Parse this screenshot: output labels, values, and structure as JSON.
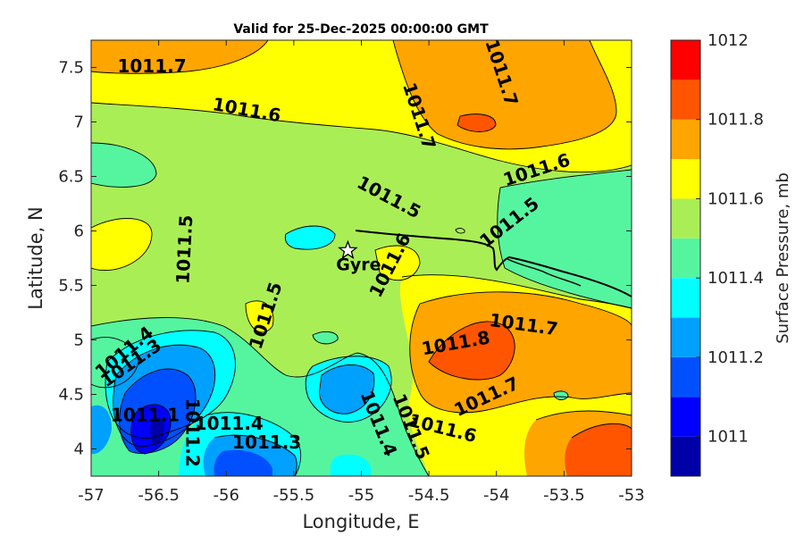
{
  "chart_data": {
    "type": "heatmap",
    "subtype": "filled-contour map",
    "title": "Valid for 25-Dec-2025 00:00:00 GMT",
    "xlabel": "Longitude, E",
    "ylabel": "Latitude, N",
    "xlim": [
      -57,
      -53
    ],
    "ylim": [
      3.75,
      7.75
    ],
    "x_ticks": [
      -57,
      -56.5,
      -56,
      -55.5,
      -55,
      -54.5,
      -54,
      -53.5,
      -53
    ],
    "x_tick_labels": [
      "-57",
      "-56.5",
      "-56",
      "-55.5",
      "-55",
      "-54.5",
      "-54",
      "-53.5",
      "-53"
    ],
    "y_ticks": [
      4,
      4.5,
      5,
      5.5,
      6,
      6.5,
      7,
      7.5
    ],
    "y_tick_labels": [
      "4",
      "4.5",
      "5",
      "5.5",
      "6",
      "6.5",
      "7",
      "7.5"
    ],
    "colorbar": {
      "label": "Surface Pressure, mb",
      "range": [
        1010.9,
        1012
      ],
      "levels": [
        1010.9,
        1011.0,
        1011.1,
        1011.2,
        1011.3,
        1011.4,
        1011.5,
        1011.6,
        1011.7,
        1011.8,
        1011.9,
        1012.0
      ],
      "colors": [
        "#0000a8",
        "#0000ff",
        "#0050ff",
        "#00a0ff",
        "#00ffff",
        "#55f5a0",
        "#aaee55",
        "#ffff00",
        "#ffa500",
        "#ff5500",
        "#ff0000",
        "#a80000"
      ],
      "tick_values": [
        1011,
        1011.2,
        1011.4,
        1011.6,
        1011.8,
        1012
      ],
      "tick_labels": [
        "1011",
        "1011.2",
        "1011.4",
        "1011.6",
        "1011.8",
        "1012"
      ]
    },
    "contour_labels": [
      {
        "text": "1011.7",
        "lon": -56.55,
        "lat": 7.5,
        "angle": 0
      },
      {
        "text": "1011.6",
        "lon": -55.85,
        "lat": 7.1,
        "angle": 10
      },
      {
        "text": "1011.7",
        "lon": -54.58,
        "lat": 7.05,
        "angle": 72
      },
      {
        "text": "1011.7",
        "lon": -53.97,
        "lat": 7.45,
        "angle": 72
      },
      {
        "text": "1011.6",
        "lon": -53.7,
        "lat": 6.55,
        "angle": -18
      },
      {
        "text": "1011.5",
        "lon": -54.8,
        "lat": 6.3,
        "angle": 28
      },
      {
        "text": "1011.5",
        "lon": -53.9,
        "lat": 6.07,
        "angle": -38
      },
      {
        "text": "1011.5",
        "lon": -56.3,
        "lat": 5.83,
        "angle": -87
      },
      {
        "text": "1011.6",
        "lon": -54.78,
        "lat": 5.68,
        "angle": -63
      },
      {
        "text": "1011.5",
        "lon": -55.7,
        "lat": 5.22,
        "angle": -72
      },
      {
        "text": "1011.7",
        "lon": -53.8,
        "lat": 5.13,
        "angle": 8
      },
      {
        "text": "1011.8",
        "lon": -54.3,
        "lat": 4.96,
        "angle": -10
      },
      {
        "text": "1011.7",
        "lon": -54.07,
        "lat": 4.47,
        "angle": -25
      },
      {
        "text": "1011.4",
        "lon": -56.75,
        "lat": 4.88,
        "angle": -40
      },
      {
        "text": "1011.3",
        "lon": -56.7,
        "lat": 4.78,
        "angle": -35
      },
      {
        "text": "1011.1",
        "lon": -56.6,
        "lat": 4.3,
        "angle": 0
      },
      {
        "text": "1011.2",
        "lon": -56.26,
        "lat": 4.15,
        "angle": 90
      },
      {
        "text": "1011.4",
        "lon": -55.98,
        "lat": 4.22,
        "angle": 0
      },
      {
        "text": "1011.3",
        "lon": -55.7,
        "lat": 4.05,
        "angle": 0
      },
      {
        "text": "1011.4",
        "lon": -54.88,
        "lat": 4.23,
        "angle": 68
      },
      {
        "text": "1011.5",
        "lon": -54.64,
        "lat": 4.2,
        "angle": 68
      },
      {
        "text": "1011.6",
        "lon": -54.4,
        "lat": 4.18,
        "angle": 14
      }
    ],
    "markers": [
      {
        "label": "Gyre",
        "lon": -55.1,
        "lat": 5.82,
        "symbol": "star"
      }
    ]
  }
}
